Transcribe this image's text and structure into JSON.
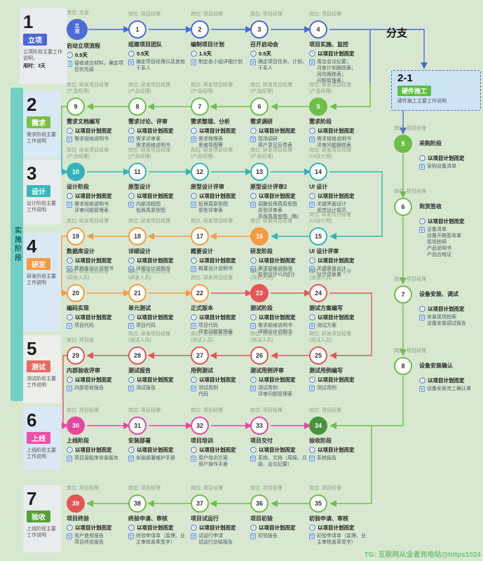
{
  "stage_bar": "实施阶段",
  "branch_label": "分支",
  "watermark": "TG: 互联网从业者充电站@https1024",
  "hardware_box": {
    "id": "2-1",
    "name": "硬件施工",
    "desc": "硬件施工主要工作说明"
  },
  "colors": {
    "blue": "#4a6bd8",
    "green": "#6cbf49",
    "teal": "#33b3b8",
    "orange": "#f59b42",
    "red": "#e25757",
    "pink": "#e8479e",
    "dgreen": "#4a9440"
  },
  "phases": [
    {
      "num": "1",
      "name": "立项",
      "color": "#4a68d8",
      "desc": "立项阶段主要工作说明，",
      "duration": "用时：3天"
    },
    {
      "num": "2",
      "name": "需求",
      "color": "#7cc043",
      "desc": "需求阶段主要工作说明"
    },
    {
      "num": "3",
      "name": "设计",
      "color": "#3bb7bb",
      "desc": "设计阶段主要工作说明"
    },
    {
      "num": "4",
      "name": "研发",
      "color": "#f59b42",
      "desc": "研发阶段主要工作说明"
    },
    {
      "num": "5",
      "name": "测试",
      "color": "#e96a5f",
      "desc": "测试阶段主要工作说明"
    },
    {
      "num": "6",
      "name": "上线",
      "color": "#ee4fa9",
      "desc": "上线阶段主要工作说明"
    },
    {
      "num": "7",
      "name": "验收",
      "color": "#57a036",
      "desc": "上线阶段主要工作说明"
    }
  ],
  "nodes": [
    {
      "num": "立项",
      "big": true,
      "filled": true,
      "color": "blue",
      "role": [
        "岗位: 总监"
      ],
      "title": "启动立项流程",
      "time": "0.5天",
      "outputs": [
        "接收递交材料，确定项目优先级"
      ]
    },
    {
      "num": "1",
      "color": "blue",
      "role": [
        "岗位: 项目经理"
      ],
      "title": "组建项目团队",
      "time": "0.5天",
      "outputs": [
        "确定项目经理以及其他干系人"
      ]
    },
    {
      "num": "2",
      "color": "blue",
      "role": [
        "岗位: 项目经理"
      ],
      "title": "编制项目计划",
      "time": "1.5天",
      "outputs": [
        "制定各小组详细计划"
      ]
    },
    {
      "num": "3",
      "color": "blue",
      "role": [
        "岗位: 项目经理"
      ],
      "title": "召开启动会",
      "time": "0.5天",
      "outputs": [
        "确定项目任务、计划、干系人"
      ]
    },
    {
      "num": "4",
      "color": "blue",
      "role": [
        "岗位: 项目经理"
      ],
      "title": "项目实施、监控",
      "time": "以项目计划而定",
      "outputs": [
        "周会会议纪要；",
        "月度计划跟踪表；",
        "风险跟踪表；",
        "问题管理表；"
      ]
    },
    {
      "num": "5",
      "filled": true,
      "color": "green",
      "role": [
        "岗位: 研发项目经理",
        "(产品经理)"
      ],
      "title": "需求阶段",
      "time": "以项目计划而定",
      "outputs": [
        "需求规格说明书",
        "评审问题跟踪表"
      ]
    },
    {
      "num": "6",
      "color": "green",
      "role": [
        "岗位: 研发项目经理",
        "(产品经理)"
      ],
      "title": "需求调研",
      "time": "以项目计划而定",
      "outputs": [
        "现场调研",
        "用户意见反馈表"
      ]
    },
    {
      "num": "7",
      "color": "green",
      "role": [
        "岗位: 研发项目经理",
        "(产品经理)"
      ],
      "title": "需求整理、分析",
      "time": "以项目计划而定",
      "outputs": [
        "需求梳理表",
        "思维导图等"
      ]
    },
    {
      "num": "8",
      "color": "green",
      "role": [
        "岗位: 研发项目经理",
        "(产品经理)"
      ],
      "title": "需求讨论、评审",
      "time": "以项目计划而定",
      "outputs": [
        "需求评审表",
        "需求规格说明书"
      ]
    },
    {
      "num": "9",
      "color": "green",
      "role": [
        "岗位: 研发项目经理",
        "(产品经理)"
      ],
      "title": "需求文档编写",
      "time": "以项目计划而定",
      "outputs": [
        "需求规格说明书"
      ]
    },
    {
      "num": "10",
      "filled": true,
      "color": "teal",
      "role": [
        "岗位: 研发项目经理",
        "(产品经理)"
      ],
      "title": "设计阶段",
      "time": "以项目计划而定",
      "outputs": [
        "需求规格说明书",
        "评审问题管理表"
      ]
    },
    {
      "num": "11",
      "color": "teal",
      "role": [
        "岗位: 研发项目经理",
        "(产品经理)"
      ],
      "title": "原型设计",
      "time": "以项目计划而定",
      "outputs": [
        "内部流程图",
        "低保真原型图"
      ]
    },
    {
      "num": "12",
      "color": "teal",
      "role": [
        "岗位: 研发项目经理",
        "(产品经理)"
      ],
      "title": "原型设计评审",
      "time": "以项目计划而定",
      "outputs": [
        "低保真原型图",
        "原型评审表"
      ]
    },
    {
      "num": "13",
      "color": "teal",
      "role": [
        "岗位: 研发项目经理",
        "(产品经理)"
      ],
      "title": "原型设计评审2",
      "time": "以项目计划而定",
      "outputs": [
        "调整低保真原型图",
        "原型评审表",
        "高保真原型图（略）"
      ]
    },
    {
      "num": "14",
      "color": "teal",
      "role": [
        "岗位: 研发项目经理",
        "(UI设计师)"
      ],
      "title": "UI 设计",
      "time": "以项目计划而定",
      "outputs": [
        "关键界面设计",
        "视觉设计规范"
      ]
    },
    {
      "num": "15",
      "color": "teal",
      "role": [
        "岗位: 研发项目经理",
        "(UI设计师)"
      ],
      "title": "UI 设计评审",
      "time": "以项目计划而定",
      "outputs": [
        "关键界面设计",
        "设计评审表"
      ]
    },
    {
      "num": "16",
      "filled": true,
      "color": "orange",
      "role": [
        "岗位: 研发项目经理"
      ],
      "title": "研发阶段",
      "time": "以项目计划而定",
      "outputs": [
        "需求规格说明书",
        "原型设计+UI设计"
      ]
    },
    {
      "num": "17",
      "color": "orange",
      "role": [
        "岗位: 研发项目经理"
      ],
      "title": "概要设计",
      "time": "以项目计划而定",
      "outputs": [
        "概要设计说明书"
      ]
    },
    {
      "num": "18",
      "color": "orange",
      "role": [
        "岗位: 研发项目经理"
      ],
      "title": "详细设计",
      "time": "以项目计划而定",
      "outputs": [
        "详细设计说明书"
      ]
    },
    {
      "num": "19",
      "color": "orange",
      "role": [
        "岗位: 研发项目经理"
      ],
      "title": "数据库设计",
      "time": "以项目计划而定",
      "outputs": [
        "数据库设计说明书"
      ]
    },
    {
      "num": "20",
      "color": "orange",
      "role": [
        "岗位: 研发项目经理",
        "(研发人员)"
      ],
      "title": "编码实现",
      "time": "以项目计划而定",
      "outputs": [
        "项目代码"
      ]
    },
    {
      "num": "21",
      "color": "orange",
      "role": [
        "岗位: 研发项目经理",
        "(研发人员)"
      ],
      "title": "单元测试",
      "time": "以项目计划而定",
      "outputs": [
        "项目代码"
      ]
    },
    {
      "num": "22",
      "color": "orange",
      "role": [
        "岗位: 研发项目经理"
      ],
      "title": "正式版本",
      "time": "以项目计划而定",
      "outputs": [
        "项目代码",
        "评审问题管理表"
      ]
    },
    {
      "num": "23",
      "filled": true,
      "color": "red",
      "role": [
        "岗位: 研发项目经理",
        "(测试人员)"
      ],
      "title": "测试阶段",
      "time": "以项目计划而定",
      "outputs": [
        "需求规格说明书",
        "详细设计说明书"
      ]
    },
    {
      "num": "24",
      "color": "red",
      "role": [
        "岗位: 研发项目经理",
        "(测试人员)"
      ],
      "title": "测试方案编写",
      "time": "以项目计划而定",
      "outputs": [
        "测试方案"
      ]
    },
    {
      "num": "25",
      "color": "red",
      "role": [
        "岗位: 研发项目经理",
        "(测试人员)"
      ],
      "title": "测试用例编写",
      "time": "以项目计划而定",
      "outputs": [
        "测试用例"
      ]
    },
    {
      "num": "26",
      "color": "red",
      "role": [
        "岗位: 研发项目经理",
        "(测试人员)"
      ],
      "title": "测试用例评审",
      "time": "以项目计划而定",
      "outputs": [
        "测试用例",
        "评审问题管理表"
      ]
    },
    {
      "num": "27",
      "color": "red",
      "role": [
        "岗位: 研发项目经理",
        "(测试人员)"
      ],
      "title": "用例测试",
      "time": "以项目计划而定",
      "outputs": [
        "测试用例",
        "代码"
      ]
    },
    {
      "num": "28",
      "color": "red",
      "role": [
        "岗位: 研发项目经理",
        "(测试人员)"
      ],
      "title": "测试报告",
      "time": "以项目计划而定",
      "outputs": [
        "测试报告"
      ]
    },
    {
      "num": "29",
      "color": "red",
      "role": [
        "岗位: 项目组"
      ],
      "title": "内部验收评审",
      "time": "以项目计划而定",
      "outputs": [
        "内部验收报告"
      ]
    },
    {
      "num": "30",
      "filled": true,
      "color": "pink",
      "role": [
        "岗位: 项目经理"
      ],
      "title": "上线阶段",
      "time": "以项目计划而定",
      "outputs": [
        "项目源程序安装服务"
      ]
    },
    {
      "num": "31",
      "color": "pink",
      "role": [
        "岗位: 项目经理"
      ],
      "title": "安装部署",
      "time": "以项目计划而定",
      "outputs": [
        "安装部署维护手册"
      ]
    },
    {
      "num": "32",
      "color": "pink",
      "role": [
        "岗位: 项目经理"
      ],
      "title": "项目培训",
      "time": "以项目计划而定",
      "outputs": [
        "用户培训方案",
        "用户操作手册"
      ]
    },
    {
      "num": "33",
      "color": "pink",
      "role": [
        "岗位: 项目经理"
      ],
      "title": "项目交付",
      "time": "以项目计划而定",
      "outputs": [
        "系统、文档（周报、月报、会议纪要）"
      ]
    },
    {
      "num": "34",
      "filled": true,
      "color": "dgreen",
      "role": [
        "岗位: 项目经理"
      ],
      "title": "验收阶段",
      "time": "以项目计划而定",
      "outputs": [
        "系统报告"
      ]
    },
    {
      "num": "35",
      "color": "green",
      "role": [
        "岗位: 项目经理"
      ],
      "title": "初验申请、审核",
      "time": "以项目计划而定",
      "outputs": [
        "初验申请单（监理、业主审核盖章签字）"
      ]
    },
    {
      "num": "36",
      "color": "green",
      "role": [
        "岗位: 项目经理"
      ],
      "title": "项目初验",
      "time": "以项目计划而定",
      "outputs": [
        "初验报告"
      ]
    },
    {
      "num": "37",
      "color": "green",
      "role": [
        "岗位: 项目经理"
      ],
      "title": "项目试运行",
      "time": "以项目计划而定",
      "outputs": [
        "试运行申请",
        "试运行总结报告"
      ]
    },
    {
      "num": "38",
      "color": "green",
      "role": [
        "岗位: 项目经理"
      ],
      "title": "终验申请、审核",
      "time": "以项目计划而定",
      "outputs": [
        "终验申请单（监理、业主审核盖章签字）"
      ]
    },
    {
      "num": "39",
      "filled": true,
      "color": "red",
      "role": [
        "岗位: 项目经理"
      ],
      "title": "项目终验",
      "time": "以项目计划而定",
      "outputs": [
        "用户使用报告",
        "项目终验报告"
      ]
    },
    {
      "num": "5",
      "side": "right",
      "filled": true,
      "color": "green",
      "role": [
        "岗位: 项目经理"
      ],
      "title": "采购阶段",
      "time": "以项目计划而定",
      "outputs": [
        "采购设备清单"
      ]
    },
    {
      "num": "6",
      "side": "right",
      "color": "green",
      "role": [
        "岗位: 项目经理"
      ],
      "title": "到货签收",
      "time": "以项目计划而定",
      "outputs": [
        "设备清单",
        "设备开箱签收单",
        "现场拍照",
        "产品说明书",
        "产品合格证"
      ]
    },
    {
      "num": "7",
      "side": "right",
      "color": "green",
      "role": [
        "岗位: 项目经理"
      ],
      "title": "设备安装、调试",
      "time": "以项目计划而定",
      "outputs": [
        "安装现场拍照",
        "设备安装调试报告"
      ]
    },
    {
      "num": "8",
      "side": "right",
      "color": "green",
      "role": [
        "岗位: 项目经理"
      ],
      "title": "设备安装确认",
      "time": "以项目计划而定",
      "outputs": [
        "设备安装完工确认单"
      ]
    }
  ]
}
